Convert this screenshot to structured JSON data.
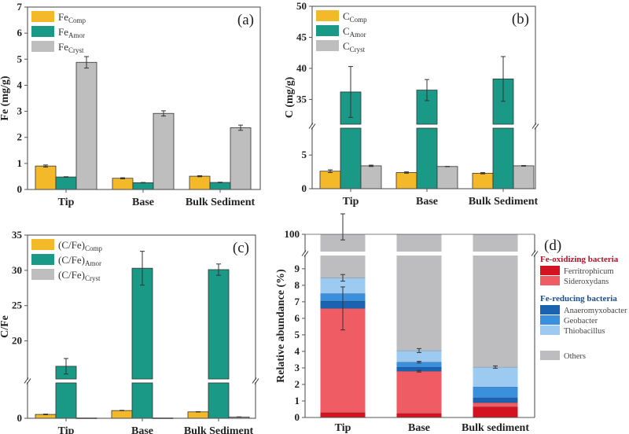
{
  "colors": {
    "comp": "#F4B928",
    "amor": "#1A9A86",
    "cryst": "#BEBEBF",
    "ferritrophicum": "#D3131F",
    "sideroxydans": "#EF5C64",
    "anaeromyxobacter": "#1B63B1",
    "geobacter": "#3A90DC",
    "thiobacillus": "#9DCAF1",
    "others": "#BDBDBF",
    "fe_ox_title": "#B0122A",
    "fe_red_title": "#1B4F8C"
  },
  "chart_data": [
    {
      "id": "a",
      "type": "bar",
      "panel_label": "(a)",
      "title": "",
      "xlabel": "",
      "ylabel": "Fe (mg/g)",
      "categories": [
        "Tip",
        "Base",
        "Bulk Sediment"
      ],
      "ylim": [
        0,
        7
      ],
      "yticks": [
        0,
        1,
        2,
        3,
        4,
        5,
        6,
        7
      ],
      "legend_position": "top-left",
      "series": [
        {
          "name": "Fe",
          "sub": "Comp",
          "color_key": "comp",
          "values": [
            0.9,
            0.43,
            0.51
          ],
          "errors": [
            0.04,
            0.02,
            0.02
          ]
        },
        {
          "name": "Fe",
          "sub": "Amor",
          "color_key": "amor",
          "values": [
            0.48,
            0.26,
            0.27
          ],
          "errors": [
            0.01,
            0.01,
            0.01
          ]
        },
        {
          "name": "Fe",
          "sub": "Cryst",
          "color_key": "cryst",
          "values": [
            4.88,
            2.92,
            2.37
          ],
          "errors": [
            0.22,
            0.1,
            0.1
          ]
        }
      ]
    },
    {
      "id": "b",
      "type": "bar",
      "panel_label": "(b)",
      "title": "",
      "xlabel": "",
      "ylabel": "C (mg/g)",
      "categories": [
        "Tip",
        "Base",
        "Bulk Sediment"
      ],
      "axis_break": true,
      "lower_range": [
        0,
        9
      ],
      "upper_range": [
        31,
        50
      ],
      "yticks_lower": [
        0,
        5
      ],
      "yticks_upper": [
        35,
        40,
        45,
        50
      ],
      "legend_position": "top-left",
      "series": [
        {
          "name": "C",
          "sub": "Comp",
          "color_key": "comp",
          "values": [
            2.6,
            2.4,
            2.3
          ],
          "errors": [
            0.2,
            0.1,
            0.1
          ]
        },
        {
          "name": "C",
          "sub": "Amor",
          "color_key": "amor",
          "values": [
            36.2,
            36.5,
            38.3
          ],
          "errors": [
            4.1,
            1.7,
            3.6
          ]
        },
        {
          "name": "C",
          "sub": "Cryst",
          "color_key": "cryst",
          "values": [
            3.4,
            3.3,
            3.4
          ],
          "errors": [
            0.1,
            0.02,
            0.05
          ]
        }
      ]
    },
    {
      "id": "c",
      "type": "bar",
      "panel_label": "(c)",
      "title": "",
      "xlabel": "",
      "ylabel": "C/Fe",
      "categories": [
        "Tip",
        "Base",
        "Bulk Sediment"
      ],
      "axis_break": true,
      "lower_range": [
        0,
        5.5
      ],
      "upper_range": [
        14.6,
        35
      ],
      "yticks_lower": [
        0
      ],
      "yticks_upper": [
        20,
        25,
        30,
        35
      ],
      "legend_position": "top-left",
      "series": [
        {
          "name": "(C/Fe)",
          "sub": "Comp",
          "color_key": "comp",
          "values": [
            0.6,
            1.2,
            1.0
          ],
          "errors": [
            0.05,
            0.03,
            0.03
          ]
        },
        {
          "name": "(C/Fe)",
          "sub": "Amor",
          "color_key": "amor",
          "values": [
            16.4,
            30.3,
            30.1
          ],
          "errors": [
            1.1,
            2.4,
            0.8
          ]
        },
        {
          "name": "(C/Fe)",
          "sub": "Cryst",
          "color_key": "cryst",
          "values": [
            0.05,
            0.05,
            0.2
          ],
          "errors": [
            0.0,
            0.0,
            0.02
          ]
        }
      ]
    },
    {
      "id": "d",
      "type": "bar",
      "stacked": true,
      "panel_label": "(d)",
      "title": "",
      "xlabel": "",
      "ylabel": "Relative abundance (%)",
      "categories": [
        "Tip",
        "Base",
        "Bulk sediment"
      ],
      "axis_break": true,
      "lower_range": [
        0,
        9.8
      ],
      "upper_range": [
        96,
        100
      ],
      "yticks_lower": [
        0,
        1,
        2,
        3,
        4,
        5,
        6,
        7,
        8,
        9
      ],
      "yticks_upper": [
        100
      ],
      "legend_position": "right",
      "legend_groups": [
        {
          "title": "Fe-oxidizing bacteria",
          "color_key": "fe_ox_title",
          "items": [
            "Ferritrophicum",
            "Sideroxydans"
          ]
        },
        {
          "title": "Fe-reducing bacteria",
          "color_key": "fe_red_title",
          "items": [
            "Anaeromyxobacter",
            "Geobacter",
            "Thiobacillus"
          ]
        },
        {
          "title": "",
          "items": [
            "Others"
          ]
        }
      ],
      "series": [
        {
          "name": "Ferritrophicum",
          "color_key": "ferritrophicum",
          "values": [
            0.3,
            0.25,
            0.65
          ]
        },
        {
          "name": "Sideroxydans",
          "color_key": "sideroxydans",
          "values": [
            6.3,
            2.55,
            0.25
          ]
        },
        {
          "name": "Anaeromyxobacter",
          "color_key": "anaeromyxobacter",
          "values": [
            0.45,
            0.25,
            0.3
          ]
        },
        {
          "name": "Geobacter",
          "color_key": "geobacter",
          "values": [
            0.45,
            0.3,
            0.65
          ]
        },
        {
          "name": "Thiobacillus",
          "color_key": "thiobacillus",
          "values": [
            0.95,
            0.7,
            1.2
          ]
        },
        {
          "name": "Others",
          "color_key": "others",
          "values": [
            91.55,
            95.95,
            96.95
          ]
        }
      ],
      "error_bars": [
        {
          "category": 0,
          "value": 6.6,
          "error": 1.3
        },
        {
          "category": 0,
          "value": 8.45,
          "error": 0.2
        },
        {
          "category": 0,
          "value": 100,
          "error": 1.3
        },
        {
          "category": 1,
          "value": 2.8,
          "error": 0.05
        },
        {
          "category": 1,
          "value": 3.35,
          "error": 0.05
        },
        {
          "category": 1,
          "value": 4.05,
          "error": 0.12
        },
        {
          "category": 2,
          "value": 3.05,
          "error": 0.07
        }
      ]
    }
  ]
}
